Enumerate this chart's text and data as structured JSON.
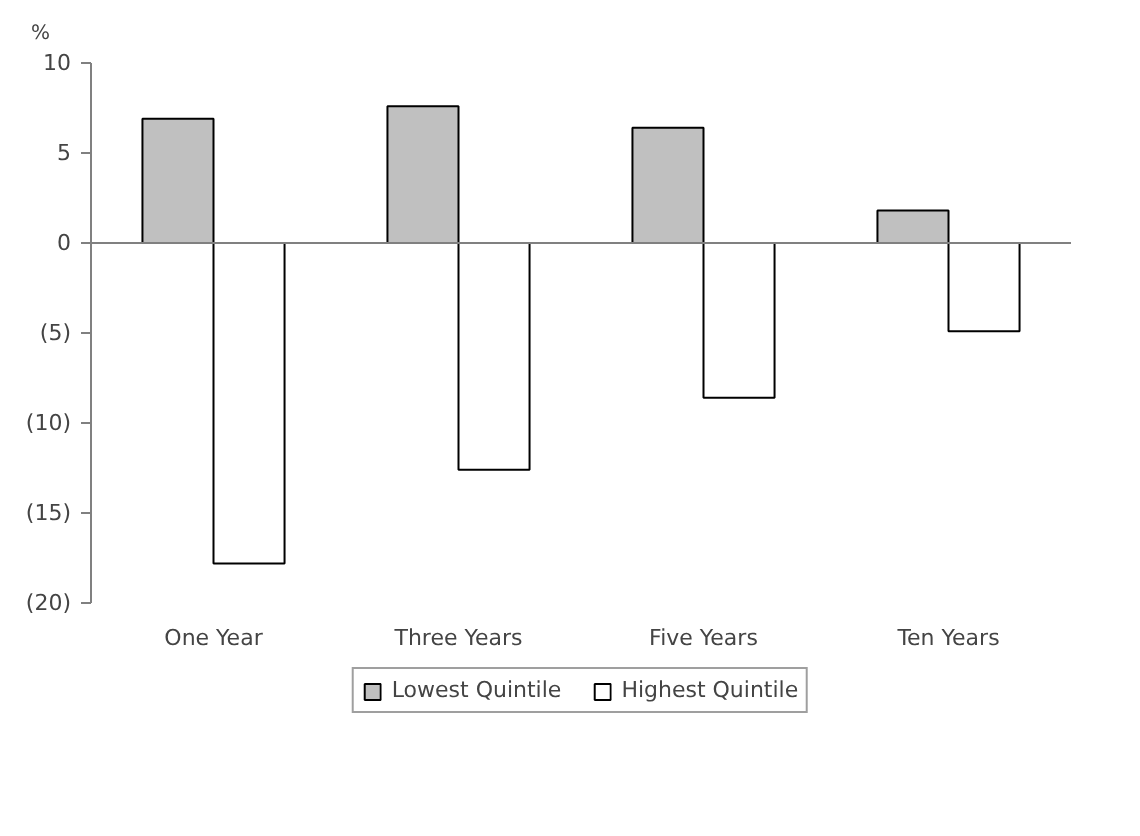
{
  "chart_data": {
    "type": "bar",
    "ylabel": "%",
    "categories": [
      "One Year",
      "Three Years",
      "Five Years",
      "Ten Years"
    ],
    "series": [
      {
        "name": "Lowest Quintile",
        "color": "#c0c0c0",
        "values": [
          6.9,
          7.6,
          6.4,
          1.8
        ]
      },
      {
        "name": "Highest Quintile",
        "color": "#ffffff",
        "values": [
          -17.8,
          -12.6,
          -8.6,
          -4.9
        ]
      }
    ],
    "ylim": [
      -20,
      10
    ],
    "yticks": [
      10,
      5,
      0,
      {
        "value": -5,
        "label": "(5)"
      },
      {
        "value": -10,
        "label": "(10)"
      },
      {
        "value": -15,
        "label": "(15)"
      },
      {
        "value": -20,
        "label": "(20)"
      }
    ],
    "legend": "bottom"
  }
}
